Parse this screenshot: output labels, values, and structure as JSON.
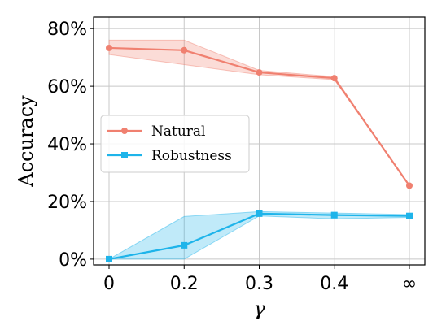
{
  "chart_data": {
    "type": "line",
    "xlabel": "γ",
    "ylabel": "Accuracy",
    "categories": [
      "0",
      "0.2",
      "0.3",
      "0.4",
      "∞"
    ],
    "ylim": [
      -2,
      84
    ],
    "yticks": [
      0,
      20,
      40,
      60,
      80
    ],
    "ytick_labels": [
      "0%",
      "20%",
      "40%",
      "60%",
      "80%"
    ],
    "grid": true,
    "legend_position": "center-left",
    "series": [
      {
        "name": "Natural",
        "color": "#f08070",
        "marker": "circle",
        "values": [
          73.3,
          72.5,
          64.8,
          62.8,
          25.5
        ],
        "band_low": [
          71.0,
          67.5,
          64.0,
          62.3,
          25.5
        ],
        "band_high": [
          76.0,
          76.0,
          65.5,
          63.3,
          25.5
        ]
      },
      {
        "name": "Robustness",
        "color": "#1eb4ea",
        "marker": "square",
        "values": [
          0.0,
          4.8,
          15.8,
          15.3,
          15.0
        ],
        "band_low": [
          0.0,
          0.0,
          15.0,
          14.0,
          14.5
        ],
        "band_high": [
          0.0,
          14.8,
          16.5,
          16.0,
          15.5
        ]
      }
    ]
  }
}
